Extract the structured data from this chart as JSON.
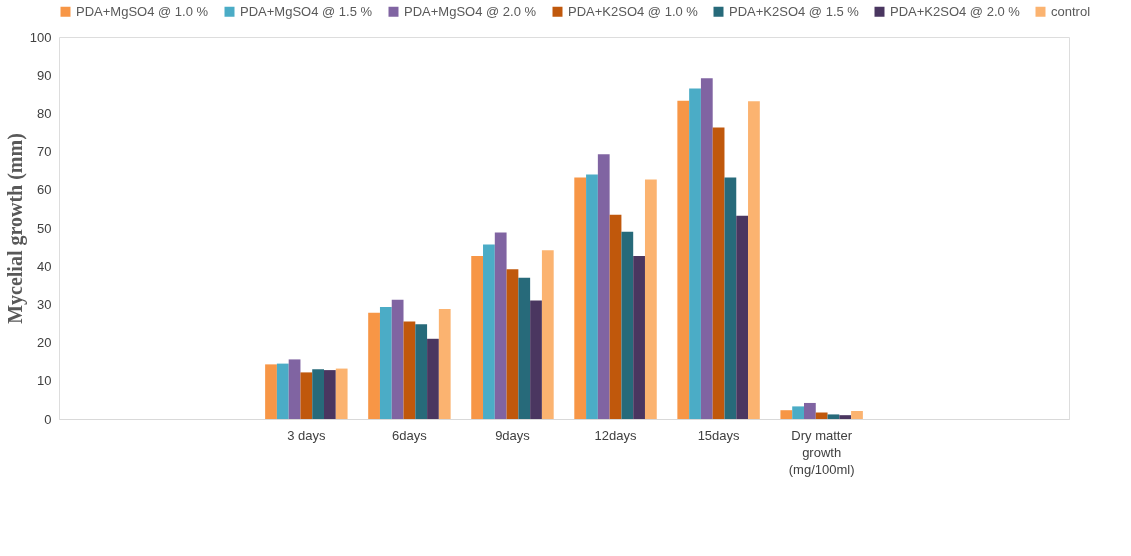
{
  "chart_data": {
    "type": "bar",
    "ylabel": "Mycelial growth (mm)",
    "categories": [
      null,
      null,
      "3 days",
      "6days",
      "9days",
      "12days",
      "15days",
      "Dry matter growth (mg/100ml)",
      null,
      null
    ],
    "series": [
      {
        "name": "PDA+MgSO4 @ 1.0 %",
        "color": "#f79646",
        "values": [
          null,
          null,
          14.3,
          27.8,
          42.7,
          63.2,
          83.3,
          2.3,
          null,
          null
        ]
      },
      {
        "name": "PDA+MgSO4 @ 1.5 %",
        "color": "#4bacc6",
        "values": [
          null,
          null,
          14.5,
          29.3,
          45.7,
          64,
          86.5,
          3.3,
          null,
          null
        ]
      },
      {
        "name": "PDA+MgSO4 @ 2.0 %",
        "color": "#8064a2",
        "values": [
          null,
          null,
          15.6,
          31.2,
          48.8,
          69.3,
          89.2,
          4.2,
          null,
          null
        ]
      },
      {
        "name": "PDA+K2SO4 @ 1.0 %",
        "color": "#c0580c",
        "values": [
          null,
          null,
          12.2,
          25.5,
          39.2,
          53.5,
          76.3,
          1.7,
          null,
          null
        ]
      },
      {
        "name": "PDA+K2SO4 @ 1.5 %",
        "color": "#276a7a",
        "values": [
          null,
          null,
          13,
          24.8,
          37,
          49,
          63.2,
          1.2,
          null,
          null
        ]
      },
      {
        "name": "PDA+K2SO4 @ 2.0 %",
        "color": "#4a3660",
        "values": [
          null,
          null,
          12.8,
          21,
          31,
          42.7,
          53.2,
          1.0,
          null,
          null
        ]
      },
      {
        "name": "control",
        "color": "#fbb370",
        "values": [
          null,
          null,
          13.2,
          28.8,
          44.2,
          62.7,
          83.2,
          2.1,
          null,
          null
        ]
      }
    ],
    "ylim": [
      0,
      100
    ],
    "yticks": [
      0,
      10,
      20,
      30,
      40,
      50,
      60,
      70,
      80,
      90,
      100
    ],
    "grid": false,
    "legend": "top"
  }
}
